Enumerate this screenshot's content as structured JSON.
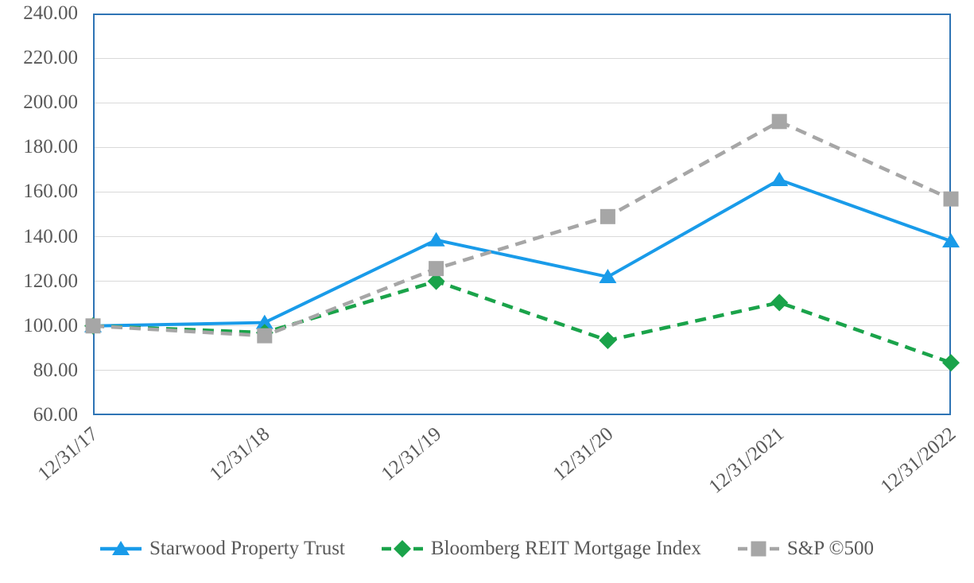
{
  "chart_data": {
    "type": "line",
    "title": "",
    "xlabel": "",
    "ylabel": "",
    "x_labels": [
      "12/31/17",
      "12/31/18",
      "12/31/19",
      "12/31/20",
      "12/31/2021",
      "12/31/2022"
    ],
    "y_axis": {
      "min": 60,
      "max": 240,
      "step": 20
    },
    "y_tick_labels": [
      "240.00",
      "220.00",
      "200.00",
      "180.00",
      "160.00",
      "140.00",
      "120.00",
      "100.00",
      "80.00",
      "60.00"
    ],
    "grid": true,
    "legend_position": "bottom-center",
    "series": [
      {
        "name": "Starwood Property Trust",
        "color": "#199BE9",
        "line_style": "solid",
        "marker": "triangle",
        "values": [
          100,
          101.5,
          138.5,
          122,
          165.5,
          138
        ]
      },
      {
        "name": "Bloomberg REIT Mortgage Index",
        "color": "#1AA34A",
        "line_style": "dashed",
        "marker": "diamond",
        "values": [
          100,
          97,
          120,
          93.5,
          110.5,
          83.5
        ]
      },
      {
        "name": "S&P ©500",
        "color": "#A6A6A6",
        "line_style": "dashed",
        "marker": "square",
        "values": [
          100,
          95.6,
          125.7,
          149,
          191.6,
          156.9
        ]
      }
    ],
    "colors": {
      "plot_border": "#2E74B5",
      "gridline": "#D9D9D9",
      "axis_text": "#595959"
    }
  }
}
